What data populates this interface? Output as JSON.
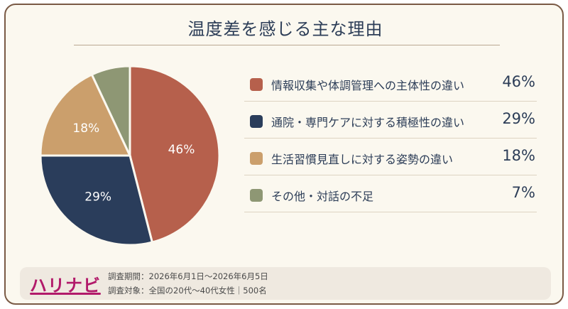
{
  "title": "温度差を感じる主な理由",
  "colors": {
    "info": "#b6604c",
    "hospital": "#2a3d5b",
    "habits": "#cb9f6c",
    "other": "#8e9774",
    "text": "#2c3d57",
    "brand": "#b21a6a"
  },
  "chart_data": {
    "type": "pie",
    "title": "温度差を感じる主な理由",
    "unit": "%",
    "slices": [
      {
        "label": "情報収集や体調管理への主体性の違い",
        "value": 46,
        "display": "46%",
        "color": "#b6604c"
      },
      {
        "label": "通院・専門ケアに対する積極性の違い",
        "value": 29,
        "display": "29%",
        "color": "#2a3d5b"
      },
      {
        "label": "生活習慣見直しに対する姿勢の違い",
        "value": 18,
        "display": "18%",
        "color": "#cb9f6c"
      },
      {
        "label": "その他・対話の不足",
        "value": 7,
        "display": "7%",
        "color": "#8e9774"
      }
    ]
  },
  "footer": {
    "logo": "ハリナビ",
    "period": "調査期間：2026年6月1日～2026年6月5日",
    "target": "調査対象：全国の20代～40代女性｜500名"
  }
}
